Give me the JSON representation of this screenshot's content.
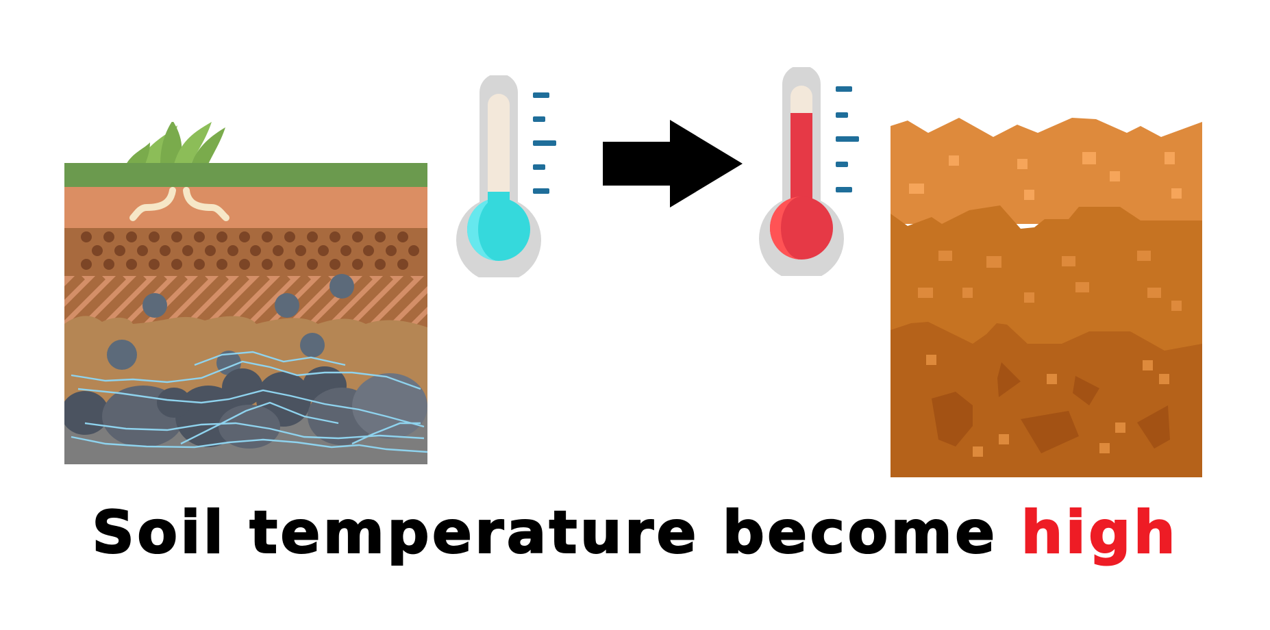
{
  "caption": {
    "prefix": "Soil temperature become ",
    "highlight": "high",
    "highlight_color": "#ee1c25"
  },
  "icons": {
    "left_soil": "layered-soil-with-water-icon",
    "cold_thermometer": "cold-thermometer-icon",
    "arrow": "right-arrow-icon",
    "hot_thermometer": "hot-thermometer-icon",
    "right_soil": "dry-soil-icon"
  },
  "colors": {
    "grass": "#6b9a4e",
    "cold_fluid": "#35d9dc",
    "hot_fluid": "#e63946",
    "dry_soil_top": "#de8a3c",
    "dry_soil_mid": "#c67322",
    "dry_soil_bottom": "#b5621a",
    "water_lines": "#8fd3ee"
  }
}
